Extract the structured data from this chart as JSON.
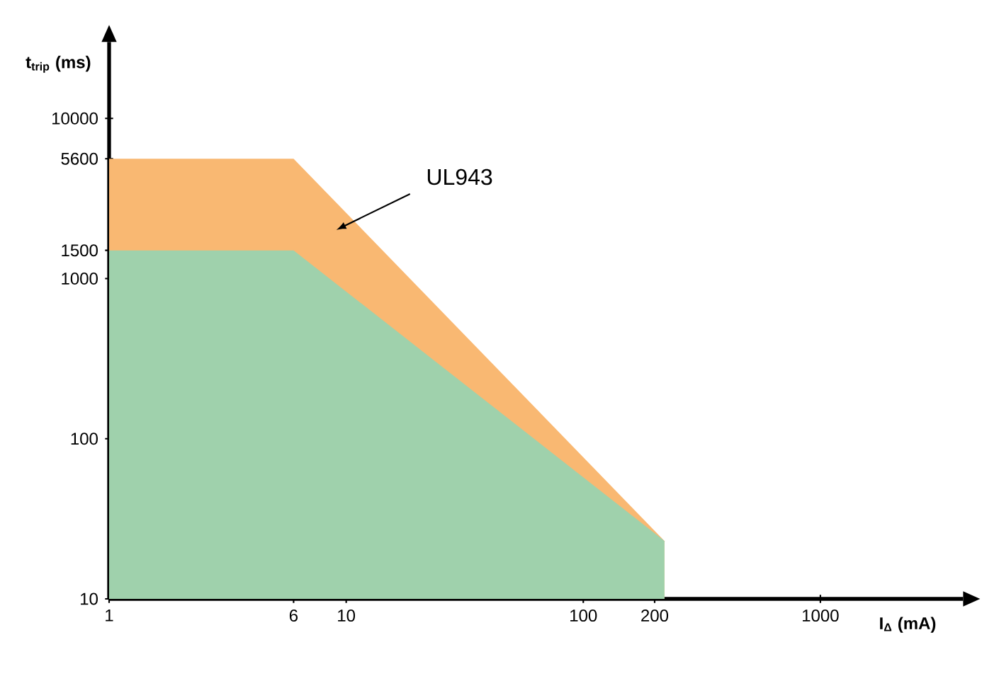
{
  "chart_data": {
    "type": "area",
    "xlabel": "I$_{Δ}$ (mA)",
    "ylabel": "t$_{trip}$ (ms)",
    "log": "xy",
    "grid": false,
    "marker": "none",
    "xlim": [
      1,
      4000
    ],
    "ylim": [
      10,
      30000
    ],
    "xticks": [
      1,
      6,
      10,
      100,
      200,
      1000
    ],
    "yticks": [
      10,
      100,
      1000,
      1500,
      5600,
      10000
    ],
    "series": [
      {
        "color": "#f9b872",
        "x": [
          1,
          6,
          220
        ],
        "values": [
          5600,
          5600,
          23
        ]
      },
      {
        "color": "#9fd1ac",
        "x": [
          1,
          6,
          220
        ],
        "values": [
          1500,
          1500,
          23
        ]
      }
    ],
    "annotations": [
      "UL943"
    ]
  }
}
